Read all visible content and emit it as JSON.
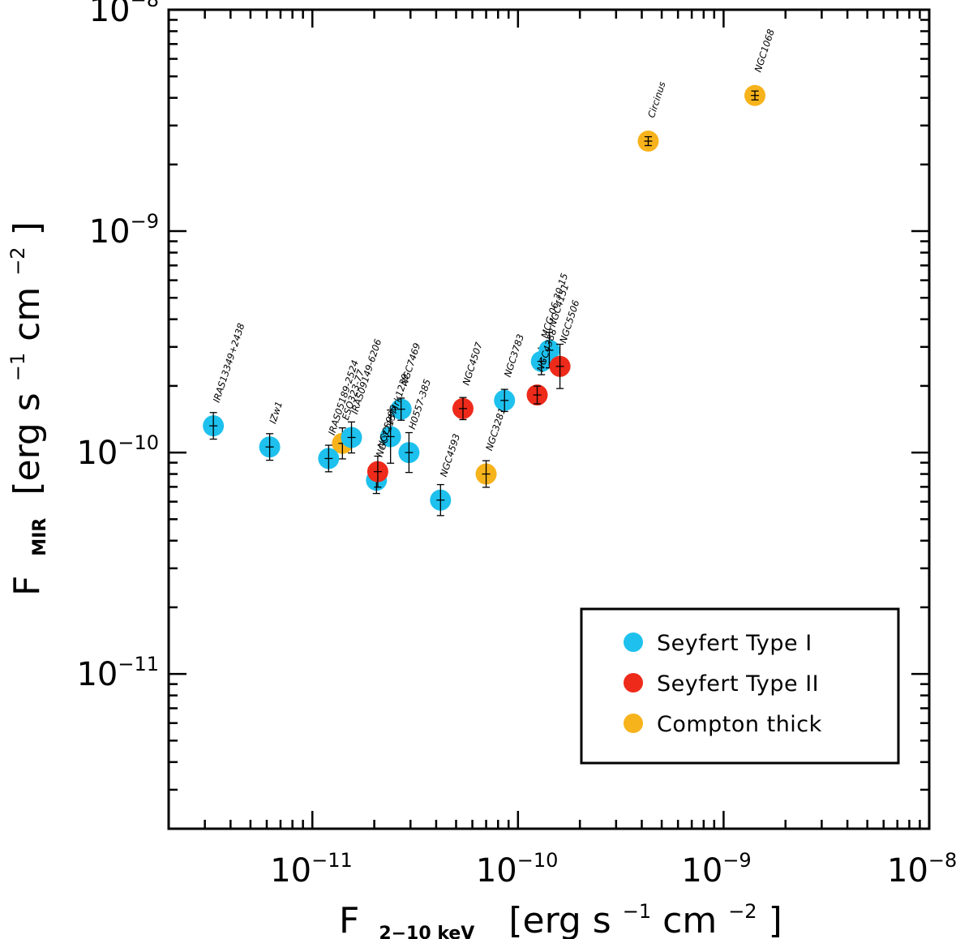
{
  "chart_data": {
    "type": "scatter",
    "x_scale": "log",
    "y_scale": "log",
    "xlim": [
      2e-12,
      1e-08
    ],
    "ylim": [
      2e-12,
      1e-08
    ],
    "x_ticks": [
      {
        "value": 1e-11,
        "mantissa": "10",
        "exp": "−11"
      },
      {
        "value": 1e-10,
        "mantissa": "10",
        "exp": "−10"
      },
      {
        "value": 1e-09,
        "mantissa": "10",
        "exp": "−9"
      },
      {
        "value": 1e-08,
        "mantissa": "10",
        "exp": "−8"
      }
    ],
    "y_ticks": [
      {
        "value": 1e-11,
        "mantissa": "10",
        "exp": "−11"
      },
      {
        "value": 1e-10,
        "mantissa": "10",
        "exp": "−10"
      },
      {
        "value": 1e-09,
        "mantissa": "10",
        "exp": "−9"
      },
      {
        "value": 1e-08,
        "mantissa": "10",
        "exp": "−8"
      }
    ],
    "xlabel": {
      "main": "F",
      "sub": "2−10 keV",
      "units_pre": "[erg s",
      "units_exp1": "−1",
      "units_mid": " cm",
      "units_exp2": "−2",
      "units_post": "]"
    },
    "ylabel": {
      "main": "F",
      "sub": "MIR",
      "units_pre": "[erg s",
      "units_exp1": "−1",
      "units_mid": " cm",
      "units_exp2": "−2",
      "units_post": "]"
    },
    "colors": {
      "seyfert1": "#1ec1ee",
      "seyfert2": "#ee2a1a",
      "compton_thick": "#f7b31c"
    },
    "legend": {
      "position": "bottom-right",
      "entries": [
        {
          "label": "Seyfert Type I",
          "class": "seyfert1"
        },
        {
          "label": "Seyfert Type II",
          "class": "seyfert2"
        },
        {
          "label": "Compton thick",
          "class": "compton_thick"
        }
      ]
    },
    "points": [
      {
        "name": "IRAS13349+2438",
        "x": 3.3e-12,
        "y": 1.32e-10,
        "class": "seyfert1",
        "yerr": 0.06
      },
      {
        "name": "IZw1",
        "x": 6.2e-12,
        "y": 1.06e-10,
        "class": "seyfert1",
        "yerr": 0.06
      },
      {
        "name": "ESO323-77",
        "x": 1.4e-11,
        "y": 1.1e-10,
        "class": "compton_thick",
        "yerr": 0.07
      },
      {
        "name": "IRAS05189-2524",
        "x": 1.2e-11,
        "y": 9.4e-11,
        "class": "seyfert1",
        "yerr": 0.06
      },
      {
        "name": "IRAS09149-6206",
        "x": 1.55e-11,
        "y": 1.17e-10,
        "class": "seyfert1",
        "yerr": 0.07
      },
      {
        "name": "NGC7213",
        "x": 2.05e-11,
        "y": 7.5e-11,
        "class": "seyfert1",
        "yerr": 0.06
      },
      {
        "name": "NGC5995",
        "x": 2.08e-11,
        "y": 8.2e-11,
        "class": "seyfert2",
        "yerr": 0.07
      },
      {
        "name": "Mrk1239",
        "x": 2.4e-11,
        "y": 1.18e-10,
        "class": "seyfert1",
        "yerr": 0.12
      },
      {
        "name": "NGC7469",
        "x": 2.7e-11,
        "y": 1.57e-10,
        "class": "seyfert1",
        "yerr": 0.05
      },
      {
        "name": "H0557-385",
        "x": 2.95e-11,
        "y": 1e-10,
        "class": "seyfert1",
        "yerr": 0.09
      },
      {
        "name": "NGC4593",
        "x": 4.2e-11,
        "y": 6.1e-11,
        "class": "seyfert1",
        "yerr": 0.07
      },
      {
        "name": "NGC4507",
        "x": 5.4e-11,
        "y": 1.58e-10,
        "class": "seyfert2",
        "yerr": 0.05
      },
      {
        "name": "NGC3281",
        "x": 7e-11,
        "y": 8e-11,
        "class": "compton_thick",
        "yerr": 0.06
      },
      {
        "name": "NGC3783",
        "x": 8.6e-11,
        "y": 1.72e-10,
        "class": "seyfert1",
        "yerr": 0.05
      },
      {
        "name": "NGC4388",
        "x": 1.24e-10,
        "y": 1.82e-10,
        "class": "seyfert2",
        "yerr": 0.04
      },
      {
        "name": "MCG-06-30-15",
        "x": 1.3e-10,
        "y": 2.58e-10,
        "class": "seyfert1",
        "yerr": 0.06
      },
      {
        "name": "NGC4151",
        "x": 1.42e-10,
        "y": 2.9e-10,
        "class": "seyfert1",
        "yerr": 0.08
      },
      {
        "name": "NGC5506",
        "x": 1.6e-10,
        "y": 2.45e-10,
        "class": "seyfert2",
        "yerr": 0.1
      },
      {
        "name": "Circinus",
        "x": 4.3e-10,
        "y": 2.55e-09,
        "class": "compton_thick",
        "yerr": 0.02
      },
      {
        "name": "NGC1068",
        "x": 1.42e-09,
        "y": 4.1e-09,
        "class": "compton_thick",
        "yerr": 0.02
      }
    ]
  }
}
